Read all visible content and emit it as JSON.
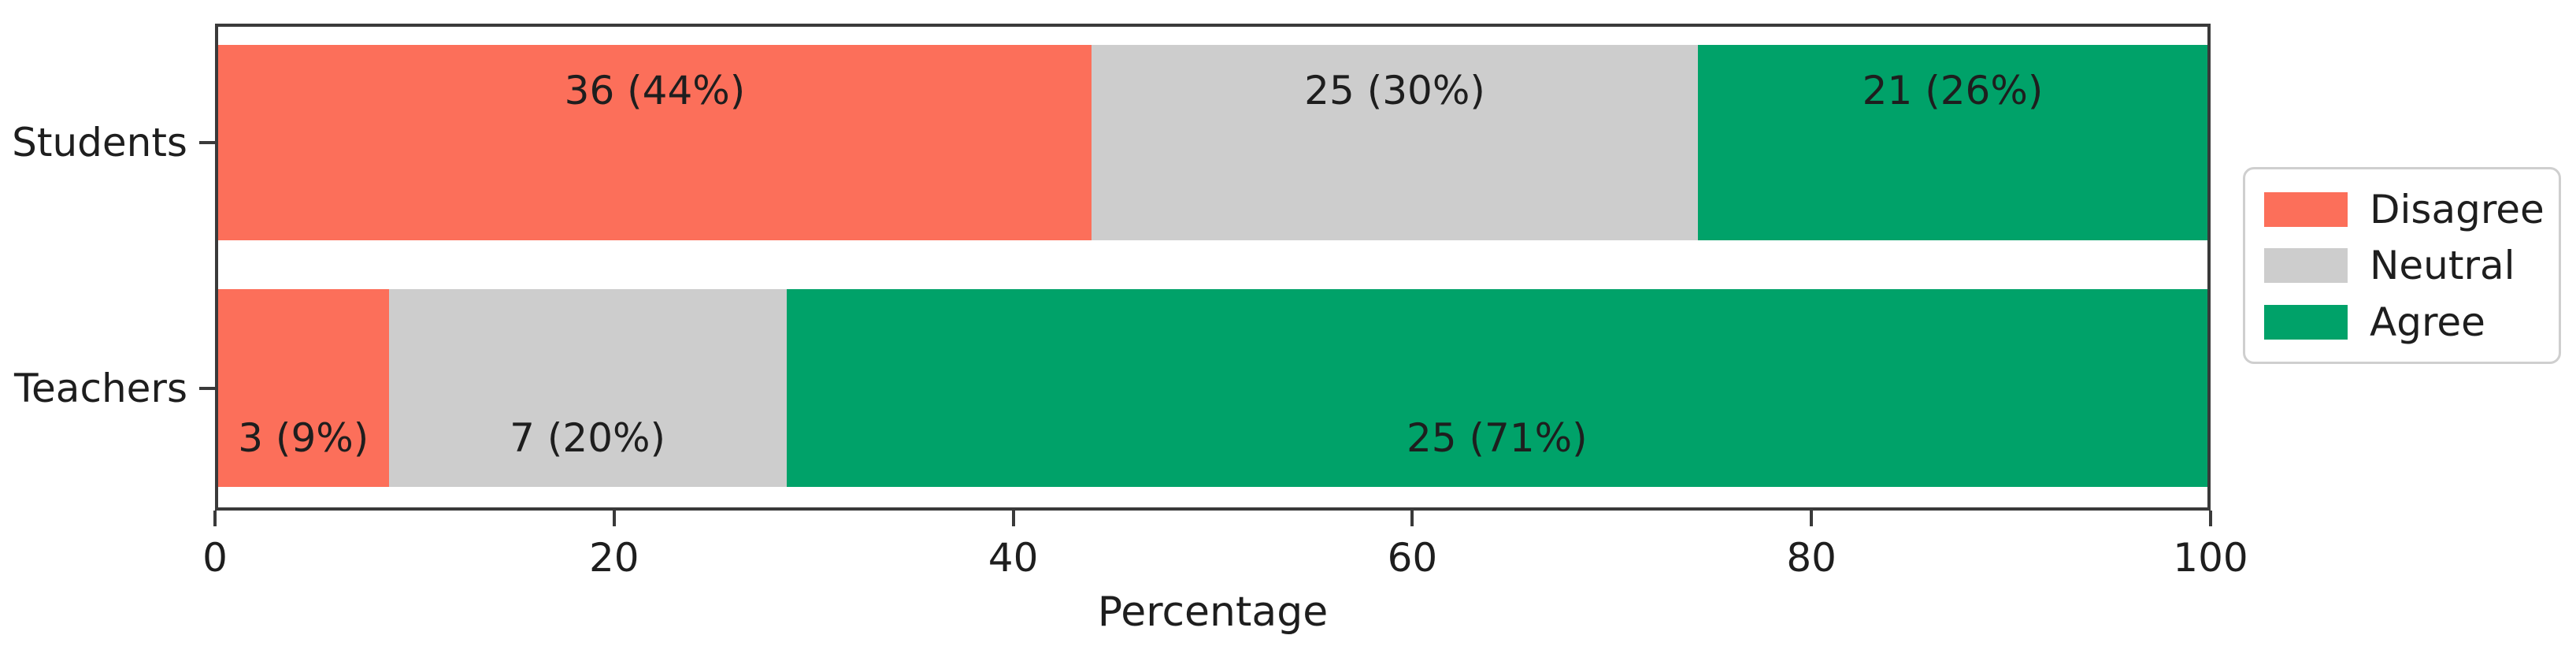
{
  "chart_data": {
    "type": "bar",
    "orientation": "horizontal",
    "stacked": true,
    "title": "",
    "xlabel": "Percentage",
    "ylabel": "",
    "xlim": [
      0,
      100
    ],
    "x_ticks": [
      0,
      20,
      40,
      60,
      80,
      100
    ],
    "grid": false,
    "categories": [
      "Students",
      "Teachers"
    ],
    "series": [
      {
        "name": "Disagree",
        "color": "#FC6F5A",
        "values": [
          36,
          3
        ],
        "labels": [
          "36 (44%)",
          "3 (9%)"
        ]
      },
      {
        "name": "Neutral",
        "color": "#CDCDCD",
        "values": [
          25,
          7
        ],
        "labels": [
          "25 (30%)",
          "7 (20%)"
        ]
      },
      {
        "name": "Agree",
        "color": "#00A269",
        "values": [
          21,
          25
        ],
        "labels": [
          "21 (26%)",
          "25 (71%)"
        ]
      }
    ],
    "legend": {
      "position": "center right",
      "entries": [
        "Disagree",
        "Neutral",
        "Agree"
      ]
    }
  }
}
